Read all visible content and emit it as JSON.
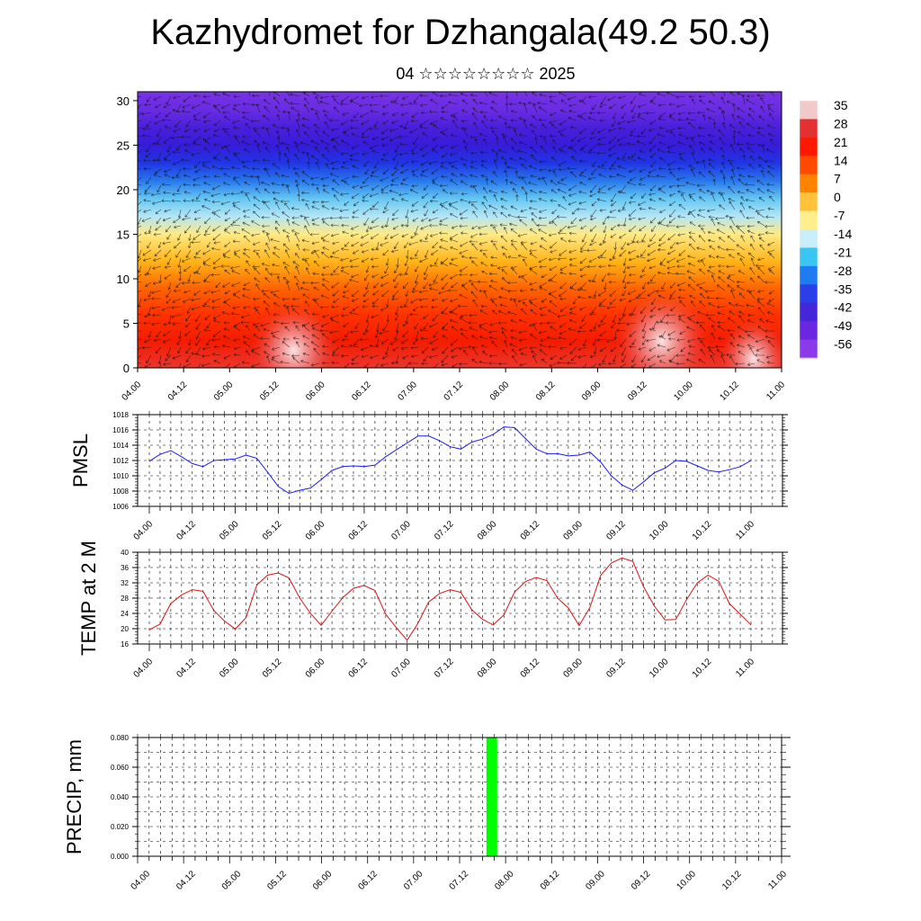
{
  "header": {
    "title": "Kazhydromet for Dzhangala(49.2 50.3)",
    "subtitle": "04 ☆☆☆☆☆☆☆☆ 2025"
  },
  "chart_data": [
    {
      "type": "heatmap",
      "title": "",
      "x_tick_labels": [
        "04.00",
        "04.12",
        "05.00",
        "05.12",
        "06.00",
        "06.12",
        "07.00",
        "07.12",
        "08.00",
        "08.12",
        "09.00",
        "09.12",
        "10.00",
        "10.12",
        "11.00"
      ],
      "y_ticks": [
        0,
        5,
        10,
        15,
        20,
        25,
        30
      ],
      "ylim": [
        0,
        31
      ],
      "overlay": "wind vectors",
      "colorbar": {
        "labels": [
          "35",
          "28",
          "21",
          "14",
          "7",
          "0",
          "-7",
          "-14",
          "-21",
          "-28",
          "-35",
          "-42",
          "-49",
          "-56"
        ],
        "colors": [
          "#f2c9c9",
          "#e33030",
          "#ff1800",
          "#ff4a00",
          "#ff8200",
          "#ffc23a",
          "#ffee8c",
          "#c8eef9",
          "#39c6f2",
          "#1e7cf0",
          "#2a3fe8",
          "#4626d9",
          "#6a26e0",
          "#8a3ae8"
        ]
      },
      "profile": {
        "levels": [
          0,
          3,
          6,
          9,
          12,
          15,
          17,
          19,
          21,
          23,
          25,
          27,
          29,
          31
        ],
        "values": [
          30,
          24,
          18,
          12,
          3,
          -5,
          -10,
          -18,
          -30,
          -40,
          -50,
          -54,
          -58,
          -60
        ]
      },
      "warm_spots": [
        {
          "time": "05.12",
          "level": 2,
          "value": 38
        },
        {
          "time": "09.12",
          "level": 3,
          "value": 40
        },
        {
          "time": "10.12",
          "level": 1,
          "value": 34
        }
      ]
    },
    {
      "type": "line",
      "ylabel": "PMSL",
      "ylim": [
        1006,
        1018
      ],
      "y_ticks": [
        1006,
        1008,
        1010,
        1012,
        1014,
        1016,
        1018
      ],
      "x_tick_labels": [
        "04.00",
        "04.12",
        "05.00",
        "05.12",
        "06.00",
        "06.12",
        "07.00",
        "07.12",
        "08.00",
        "08.12",
        "09.00",
        "09.12",
        "10.00",
        "10.12",
        "11.00"
      ],
      "series": [
        {
          "color": "#1a1aff",
          "values": [
            1011.9,
            1012.8,
            1013.3,
            1012.5,
            1011.6,
            1011.2,
            1012.0,
            1012.1,
            1012.2,
            1012.7,
            1012.3,
            1010.5,
            1008.6,
            1007.7,
            1008.1,
            1008.4,
            1009.5,
            1010.7,
            1011.2,
            1011.3,
            1011.2,
            1011.4,
            1012.5,
            1013.4,
            1014.3,
            1015.2,
            1015.2,
            1014.6,
            1013.8,
            1013.5,
            1014.4,
            1014.8,
            1015.4,
            1016.4,
            1016.3,
            1014.9,
            1013.5,
            1012.9,
            1012.9,
            1012.6,
            1012.7,
            1013.1,
            1011.8,
            1010.0,
            1008.8,
            1008.1,
            1009.2,
            1010.4,
            1011.0,
            1012.0,
            1011.9,
            1011.3,
            1010.7,
            1010.5,
            1010.8,
            1011.2,
            1012.0
          ]
        }
      ]
    },
    {
      "type": "line",
      "ylabel": "TEMP at 2 M",
      "ylim": [
        16,
        40
      ],
      "y_ticks": [
        16,
        20,
        24,
        28,
        32,
        36,
        40
      ],
      "x_tick_labels": [
        "04.00",
        "04.12",
        "05.00",
        "05.12",
        "06.00",
        "06.12",
        "07.00",
        "07.12",
        "08.00",
        "08.12",
        "09.00",
        "09.12",
        "10.00",
        "10.12",
        "11.00"
      ],
      "series": [
        {
          "color": "#e01010",
          "values": [
            19.7,
            21.2,
            26.6,
            28.8,
            30.2,
            29.8,
            24.8,
            22.0,
            19.9,
            22.9,
            31.4,
            34.0,
            34.6,
            33.3,
            28.0,
            24.0,
            20.9,
            24.6,
            28.1,
            30.6,
            31.3,
            30.0,
            23.8,
            20.2,
            17.0,
            21.4,
            27.0,
            29.2,
            30.2,
            29.5,
            25.0,
            22.5,
            21.0,
            23.6,
            29.6,
            32.3,
            33.4,
            32.6,
            28.0,
            25.4,
            20.8,
            25.5,
            33.9,
            37.2,
            38.5,
            37.6,
            31.0,
            25.9,
            22.3,
            22.4,
            27.6,
            32.0,
            34.0,
            32.4,
            26.5,
            23.8,
            21.0
          ]
        }
      ]
    },
    {
      "type": "bar",
      "ylabel": "PRECIP, mm",
      "ylim": [
        0,
        0.08
      ],
      "y_ticks": [
        "0.000",
        "0.020",
        "0.040",
        "0.060",
        "0.080"
      ],
      "x_tick_labels": [
        "04.00",
        "04.12",
        "05.00",
        "05.12",
        "06.00",
        "06.12",
        "07.00",
        "07.12",
        "08.00",
        "08.12",
        "09.00",
        "09.12",
        "10.00",
        "10.12",
        "11.00"
      ],
      "bars": [
        {
          "time_index": 7.7,
          "value": 0.08,
          "color": "#00ff00"
        }
      ]
    }
  ]
}
